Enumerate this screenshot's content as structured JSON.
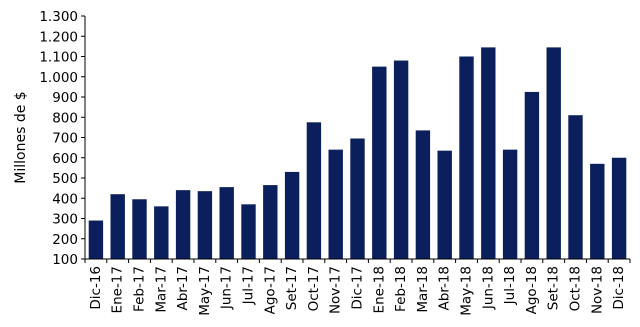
{
  "chart_data": {
    "type": "bar",
    "title": "",
    "xlabel": "",
    "ylabel": "Millones de $",
    "ylim": [
      100,
      1300
    ],
    "yticks": [
      100,
      200,
      300,
      400,
      500,
      600,
      700,
      800,
      900,
      1000,
      1100,
      1200,
      1300
    ],
    "ytick_labels": [
      "100",
      "200",
      "300",
      "400",
      "500",
      "600",
      "700",
      "800",
      "900",
      "1.000",
      "1.100",
      "1.200",
      "1.300"
    ],
    "grid": false,
    "legend": "none",
    "bar_color": "#0b1f5c",
    "categories": [
      "Dic-16",
      "Ene-17",
      "Feb-17",
      "Mar-17",
      "Abr-17",
      "May-17",
      "Jun-17",
      "Jul-17",
      "Ago-17",
      "Set-17",
      "Oct-17",
      "Nov-17",
      "Dic-17",
      "Ene-18",
      "Feb-18",
      "Mar-18",
      "Abr-18",
      "May-18",
      "Jun-18",
      "Jul-18",
      "Ago-18",
      "Set-18",
      "Oct-18",
      "Nov-18",
      "Dic-18"
    ],
    "values": [
      290,
      420,
      395,
      360,
      440,
      435,
      455,
      370,
      465,
      530,
      775,
      640,
      695,
      1050,
      1080,
      735,
      635,
      1100,
      1145,
      640,
      925,
      1145,
      810,
      570,
      600
    ]
  }
}
